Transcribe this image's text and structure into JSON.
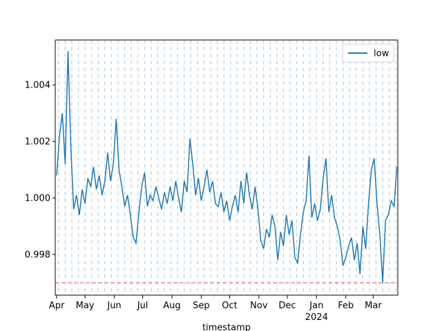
{
  "chart_data": {
    "type": "line",
    "x_label": "timestamp",
    "year_label": "2024",
    "x": [
      0,
      3,
      6,
      9,
      12,
      15,
      18,
      21,
      24,
      27,
      30,
      33,
      36,
      39,
      42,
      45,
      48,
      51,
      54,
      57,
      60,
      63,
      66,
      69,
      72,
      75,
      78,
      81,
      84,
      87,
      90,
      93,
      96,
      99,
      102,
      105,
      108,
      111,
      114,
      117,
      120,
      123,
      126,
      129,
      132,
      135,
      138,
      141,
      144,
      147,
      150,
      153,
      156,
      159,
      162,
      165,
      168,
      171,
      174,
      177,
      180,
      183,
      186,
      189,
      192,
      195,
      198,
      201,
      204,
      207,
      210,
      213,
      216,
      219,
      222,
      225,
      228,
      231,
      234,
      237,
      240,
      243,
      246,
      249,
      252,
      255,
      258,
      261,
      264,
      267,
      270,
      273,
      276,
      279,
      282,
      285,
      288,
      291,
      294,
      297,
      300,
      303,
      306,
      309,
      312,
      315,
      318,
      321,
      324,
      327,
      330,
      333,
      336,
      339,
      342,
      345,
      348,
      351,
      354,
      357,
      360
    ],
    "series": [
      {
        "name": "low",
        "color": "#1f77b4",
        "values": [
          1.0008,
          1.0022,
          1.003,
          1.0012,
          1.0052,
          1.0018,
          0.9996,
          1.0001,
          0.9994,
          1.0003,
          0.9998,
          1.0007,
          1.0004,
          1.0011,
          1.0003,
          1.0008,
          1.0001,
          1.0006,
          1.0016,
          1.0006,
          1.0012,
          1.0028,
          1.001,
          1.0004,
          0.9997,
          1.0001,
          0.9994,
          0.9986,
          0.9984,
          0.9995,
          1.0004,
          1.0009,
          0.9997,
          1.0001,
          0.9999,
          1.0004,
          1.0,
          0.9996,
          1.0002,
          0.9998,
          1.0004,
          0.9999,
          1.0006,
          1.0,
          0.9995,
          1.0006,
          1.0002,
          1.0021,
          1.0012,
          1.0001,
          1.0007,
          0.9999,
          1.0004,
          1.001,
          1.0002,
          1.0006,
          0.9998,
          0.9997,
          1.0002,
          0.9995,
          0.9999,
          0.9992,
          0.9997,
          1.0001,
          0.9995,
          1.0006,
          0.9998,
          1.0009,
          1.0001,
          0.9996,
          1.0004,
          0.9996,
          0.9985,
          0.9982,
          0.9989,
          0.9986,
          0.9994,
          0.999,
          0.9978,
          0.9988,
          0.9983,
          0.9994,
          0.9987,
          0.9992,
          0.9979,
          0.9977,
          0.9987,
          0.9995,
          0.9999,
          1.0015,
          0.9993,
          0.9998,
          0.9992,
          0.9996,
          1.0007,
          1.0014,
          0.9995,
          1.0001,
          0.9993,
          0.999,
          0.9985,
          0.9976,
          0.9979,
          0.9983,
          0.9986,
          0.9978,
          0.9984,
          0.9973,
          0.999,
          0.9982,
          0.9998,
          1.001,
          1.0014,
          0.9998,
          0.9987,
          0.997,
          0.9992,
          0.9994,
          0.9999,
          0.9997,
          1.0011
        ]
      }
    ],
    "xlim": [
      -1.5,
      361
    ],
    "xticks": [
      {
        "value": 0,
        "label": "Apr"
      },
      {
        "value": 30,
        "label": "May"
      },
      {
        "value": 61,
        "label": "Jun"
      },
      {
        "value": 91,
        "label": "Jul"
      },
      {
        "value": 122,
        "label": "Aug"
      },
      {
        "value": 153,
        "label": "Sep"
      },
      {
        "value": 183,
        "label": "Oct"
      },
      {
        "value": 214,
        "label": "Nov"
      },
      {
        "value": 244,
        "label": "Dec"
      },
      {
        "value": 275,
        "label": "Jan"
      },
      {
        "value": 306,
        "label": "Feb"
      },
      {
        "value": 335,
        "label": "Mar"
      }
    ],
    "ylim": [
      0.99656,
      1.00559
    ],
    "yticks": [
      0.998,
      {
        "value": 1,
        "label": "1.000"
      },
      1.002,
      1.004
    ],
    "vlines": {
      "color": "#a6c8e0",
      "values": [
        2,
        9,
        16,
        23,
        30,
        37,
        44,
        51,
        58,
        65,
        72,
        79,
        86,
        93,
        100,
        107,
        114,
        121,
        128,
        135,
        142,
        149,
        156,
        163,
        170,
        177,
        184,
        191,
        198,
        205,
        212,
        219,
        226,
        233,
        240,
        247,
        254,
        261,
        268,
        275,
        282,
        289,
        296,
        303,
        310,
        317,
        324,
        331,
        338,
        345,
        352,
        359
      ]
    },
    "hline": {
      "value": 0.997,
      "color": "#f08080"
    },
    "legend": "upper right"
  }
}
